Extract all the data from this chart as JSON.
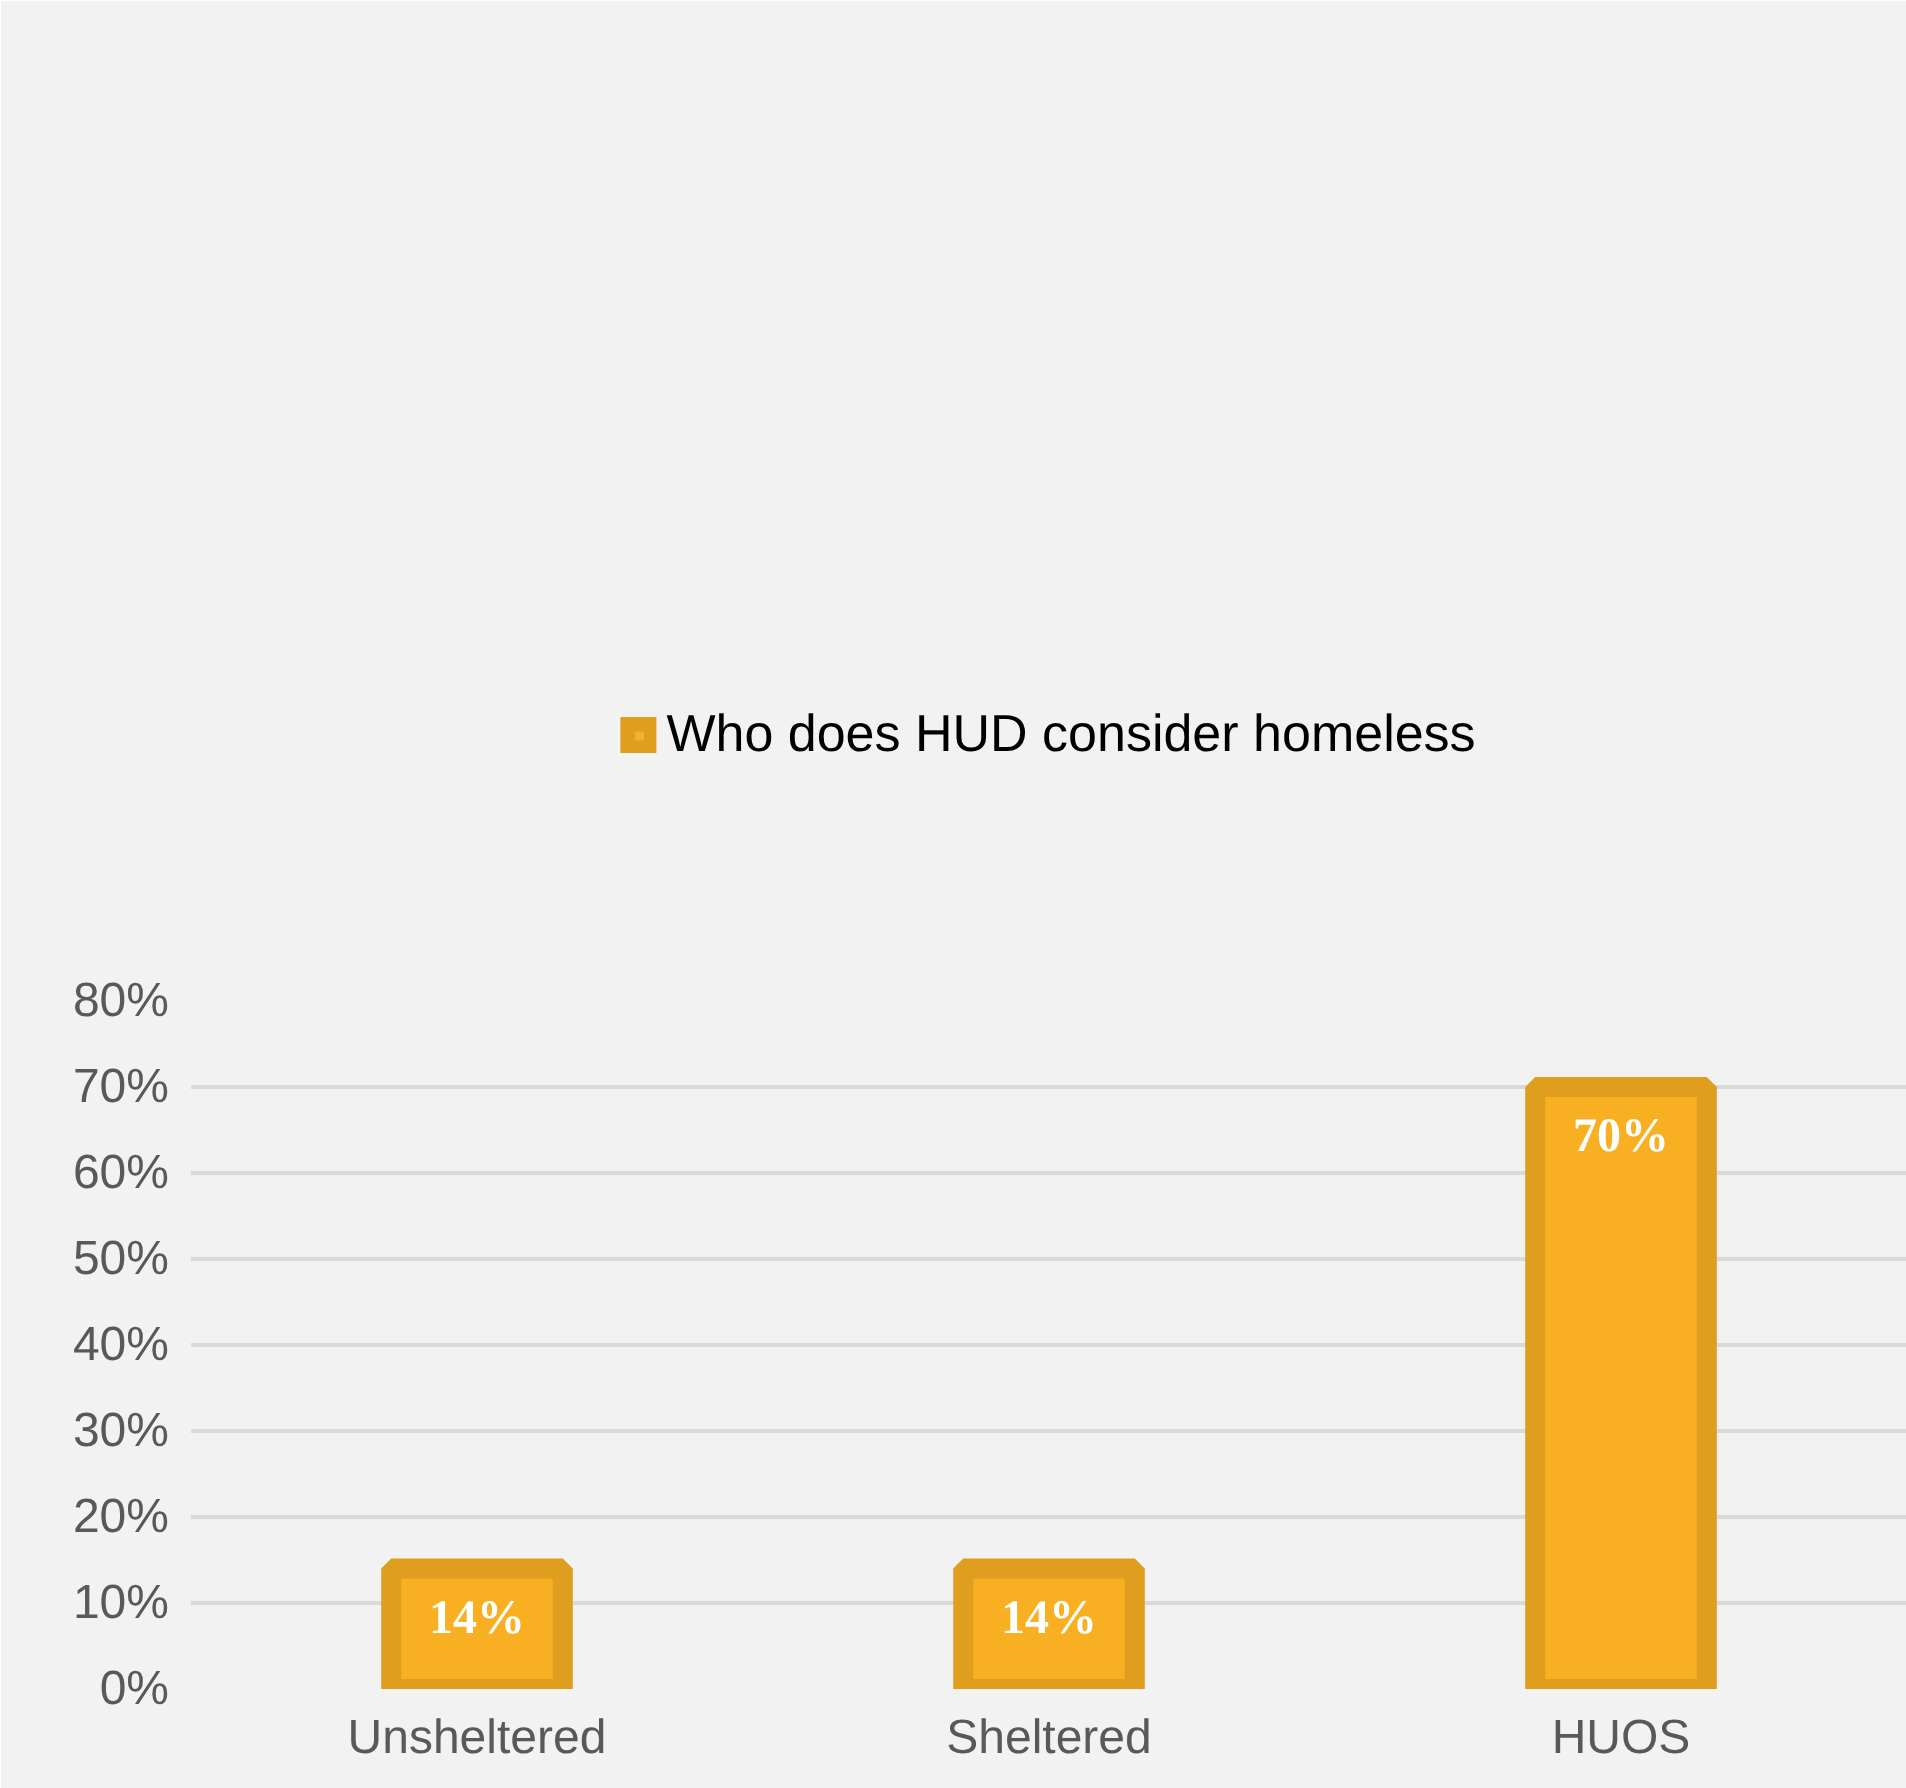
{
  "chart_data": {
    "type": "bar",
    "categories": [
      "Unsheltered",
      "Sheltered",
      "HUOS"
    ],
    "series": [
      {
        "name": "Who does HUD consider homeless",
        "color": "#f8b022",
        "values": [
          14,
          14,
          70
        ],
        "value_labels": [
          "14%",
          "14%",
          "70%"
        ]
      }
    ],
    "ylim": [
      0,
      80
    ],
    "yticks": [
      {
        "value": 0,
        "label": "0%"
      },
      {
        "value": 10,
        "label": "10%"
      },
      {
        "value": 20,
        "label": "20%"
      },
      {
        "value": 30,
        "label": "30%"
      },
      {
        "value": 40,
        "label": "40%"
      },
      {
        "value": 50,
        "label": "50%"
      },
      {
        "value": 60,
        "label": "60%"
      },
      {
        "value": 70,
        "label": "70%"
      },
      {
        "value": 80,
        "label": "80%"
      }
    ],
    "grid": "y",
    "legend": "top"
  }
}
